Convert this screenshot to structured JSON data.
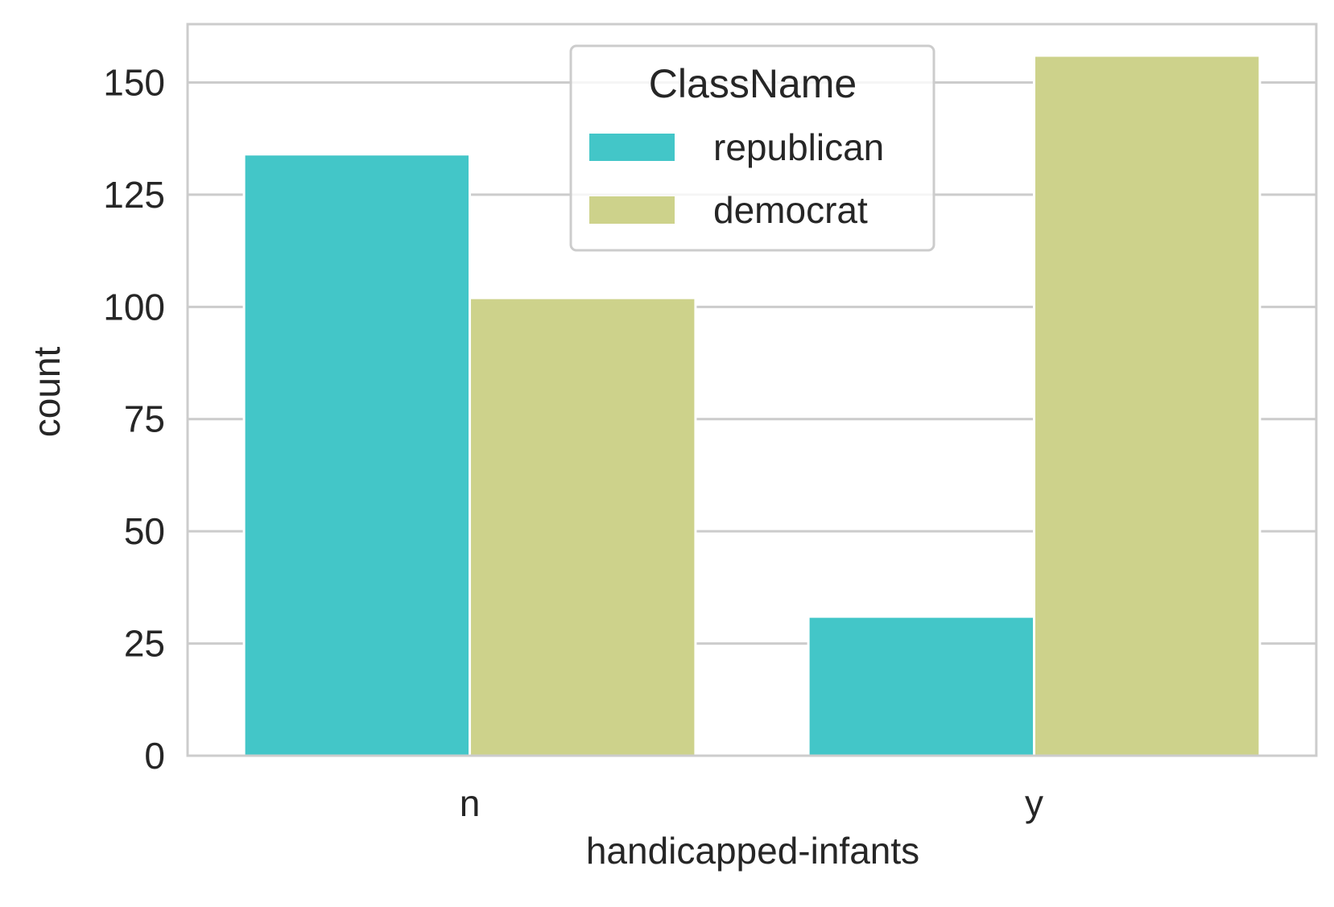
{
  "chart_data": {
    "type": "bar",
    "title": "",
    "xlabel": "handicapped-infants",
    "ylabel": "count",
    "categories": [
      "n",
      "y"
    ],
    "series": [
      {
        "name": "republican",
        "values": [
          134,
          31
        ],
        "color": "#43c6c8"
      },
      {
        "name": "democrat",
        "values": [
          102,
          156
        ],
        "color": "#cdd28b"
      }
    ],
    "ylim": [
      0,
      163
    ],
    "yticks": [
      0,
      25,
      50,
      75,
      100,
      125,
      150
    ],
    "grid": true,
    "legend": {
      "title": "ClassName",
      "placement": "top-center",
      "entries": [
        "republican",
        "democrat"
      ]
    },
    "colors": {
      "gridline": "#cccccc",
      "spine": "#cccccc",
      "text": "#262626"
    }
  }
}
